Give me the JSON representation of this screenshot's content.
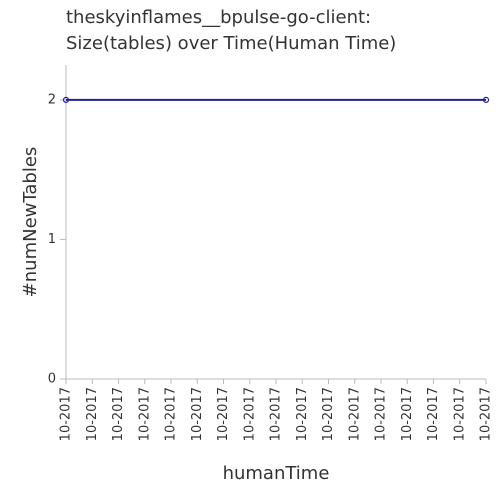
{
  "chart_data": {
    "type": "line",
    "title": [
      "theskyinflames__bpulse-go-client:",
      "Size(tables) over Time(Human Time)"
    ],
    "x_label": "humanTime",
    "y_label": "#numNewTables",
    "x": [
      0,
      16
    ],
    "series": [
      {
        "name": "numNewTables",
        "color": "#1f1fa0",
        "values": [
          2,
          2
        ]
      }
    ],
    "xlim": [
      0,
      16
    ],
    "xticks": [
      {
        "value": 0,
        "label": "10-2017"
      },
      {
        "value": 1,
        "label": "10-2017"
      },
      {
        "value": 2,
        "label": "10-2017"
      },
      {
        "value": 3,
        "label": "10-2017"
      },
      {
        "value": 4,
        "label": "10-2017"
      },
      {
        "value": 5,
        "label": "10-2017"
      },
      {
        "value": 6,
        "label": "10-2017"
      },
      {
        "value": 7,
        "label": "10-2017"
      },
      {
        "value": 8,
        "label": "10-2017"
      },
      {
        "value": 9,
        "label": "10-2017"
      },
      {
        "value": 10,
        "label": "10-2017"
      },
      {
        "value": 11,
        "label": "10-2017"
      },
      {
        "value": 12,
        "label": "10-2017"
      },
      {
        "value": 13,
        "label": "10-2017"
      },
      {
        "value": 14,
        "label": "10-2017"
      },
      {
        "value": 15,
        "label": "10-2017"
      },
      {
        "value": 16,
        "label": "10-2017"
      }
    ],
    "ylim": [
      0,
      2.25
    ],
    "yticks": [
      0,
      1,
      2
    ]
  }
}
